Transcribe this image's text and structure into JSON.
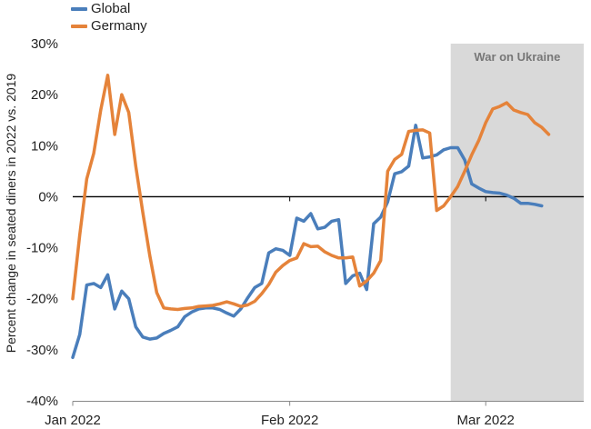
{
  "chart_data": {
    "type": "line",
    "ylabel": "Percent change in seated diners in 2022 vs. 2019",
    "ylim": [
      -40,
      30
    ],
    "yticks": [
      "30%",
      "20%",
      "10%",
      "0%",
      "-10%",
      "-20%",
      "-30%",
      "-40%"
    ],
    "ytick_values": [
      30,
      20,
      10,
      0,
      -10,
      -20,
      -30,
      -40
    ],
    "xlim": [
      "2022-01-01",
      "2022-03-15"
    ],
    "xticks": [
      {
        "date": "2022-01-01",
        "label": "Jan 2022"
      },
      {
        "date": "2022-02-01",
        "label": "Feb 2022"
      },
      {
        "date": "2022-03-01",
        "label": "Mar 2022"
      }
    ],
    "shaded_region": {
      "start": "2022-02-24",
      "end": "2022-03-15",
      "label": "War on Ukraine",
      "color": "#d9d9d9"
    },
    "zero_line": true,
    "grid": false,
    "legend_position": "top-left",
    "series": [
      {
        "name": "Global",
        "color": "#4a7ebb",
        "points": [
          [
            "2022-01-01",
            -31.5
          ],
          [
            "2022-01-02",
            -27.0
          ],
          [
            "2022-01-03",
            -17.3
          ],
          [
            "2022-01-04",
            -17.0
          ],
          [
            "2022-01-05",
            -17.8
          ],
          [
            "2022-01-06",
            -15.3
          ],
          [
            "2022-01-07",
            -22.0
          ],
          [
            "2022-01-08",
            -18.5
          ],
          [
            "2022-01-09",
            -20.0
          ],
          [
            "2022-01-10",
            -25.5
          ],
          [
            "2022-01-11",
            -27.5
          ],
          [
            "2022-01-12",
            -27.9
          ],
          [
            "2022-01-13",
            -27.7
          ],
          [
            "2022-01-14",
            -26.8
          ],
          [
            "2022-01-15",
            -26.2
          ],
          [
            "2022-01-16",
            -25.5
          ],
          [
            "2022-01-17",
            -23.5
          ],
          [
            "2022-01-18",
            -22.6
          ],
          [
            "2022-01-19",
            -22.0
          ],
          [
            "2022-01-20",
            -21.8
          ],
          [
            "2022-01-21",
            -21.8
          ],
          [
            "2022-01-22",
            -22.1
          ],
          [
            "2022-01-23",
            -22.8
          ],
          [
            "2022-01-24",
            -23.4
          ],
          [
            "2022-01-25",
            -22.0
          ],
          [
            "2022-01-26",
            -19.8
          ],
          [
            "2022-01-27",
            -17.8
          ],
          [
            "2022-01-28",
            -17.0
          ],
          [
            "2022-01-29",
            -11.0
          ],
          [
            "2022-01-30",
            -10.2
          ],
          [
            "2022-01-31",
            -10.5
          ],
          [
            "2022-02-01",
            -11.5
          ],
          [
            "2022-02-02",
            -4.2
          ],
          [
            "2022-02-03",
            -4.8
          ],
          [
            "2022-02-04",
            -3.3
          ],
          [
            "2022-02-05",
            -6.3
          ],
          [
            "2022-02-06",
            -6.0
          ],
          [
            "2022-02-07",
            -4.8
          ],
          [
            "2022-02-08",
            -4.5
          ],
          [
            "2022-02-09",
            -17.0
          ],
          [
            "2022-02-10",
            -15.5
          ],
          [
            "2022-02-11",
            -15.0
          ],
          [
            "2022-02-12",
            -18.2
          ],
          [
            "2022-02-13",
            -5.3
          ],
          [
            "2022-02-14",
            -4.0
          ],
          [
            "2022-02-15",
            -1.0
          ],
          [
            "2022-02-16",
            4.5
          ],
          [
            "2022-02-17",
            4.9
          ],
          [
            "2022-02-18",
            6.0
          ],
          [
            "2022-02-19",
            14.0
          ],
          [
            "2022-02-20",
            7.6
          ],
          [
            "2022-02-21",
            7.8
          ],
          [
            "2022-02-22",
            8.2
          ],
          [
            "2022-02-23",
            9.2
          ],
          [
            "2022-02-24",
            9.6
          ],
          [
            "2022-02-25",
            9.6
          ],
          [
            "2022-02-26",
            7.2
          ],
          [
            "2022-02-27",
            2.5
          ],
          [
            "2022-02-28",
            1.7
          ],
          [
            "2022-03-01",
            1.0
          ],
          [
            "2022-03-02",
            0.8
          ],
          [
            "2022-03-03",
            0.7
          ],
          [
            "2022-03-04",
            0.3
          ],
          [
            "2022-03-05",
            -0.3
          ],
          [
            "2022-03-06",
            -1.3
          ],
          [
            "2022-03-07",
            -1.3
          ],
          [
            "2022-03-08",
            -1.5
          ],
          [
            "2022-03-09",
            -1.8
          ]
        ]
      },
      {
        "name": "Germany",
        "color": "#e5833a",
        "points": [
          [
            "2022-01-01",
            -20.0
          ],
          [
            "2022-01-02",
            -7.5
          ],
          [
            "2022-01-03",
            3.5
          ],
          [
            "2022-01-04",
            8.5
          ],
          [
            "2022-01-05",
            17.0
          ],
          [
            "2022-01-06",
            23.8
          ],
          [
            "2022-01-07",
            12.2
          ],
          [
            "2022-01-08",
            20.0
          ],
          [
            "2022-01-09",
            16.5
          ],
          [
            "2022-01-10",
            6.0
          ],
          [
            "2022-01-11",
            -3.0
          ],
          [
            "2022-01-12",
            -11.5
          ],
          [
            "2022-01-13",
            -18.8
          ],
          [
            "2022-01-14",
            -21.8
          ],
          [
            "2022-01-15",
            -22.0
          ],
          [
            "2022-01-16",
            -22.1
          ],
          [
            "2022-01-17",
            -21.9
          ],
          [
            "2022-01-18",
            -21.8
          ],
          [
            "2022-01-19",
            -21.5
          ],
          [
            "2022-01-20",
            -21.4
          ],
          [
            "2022-01-21",
            -21.3
          ],
          [
            "2022-01-22",
            -21.0
          ],
          [
            "2022-01-23",
            -20.6
          ],
          [
            "2022-01-24",
            -21.0
          ],
          [
            "2022-01-25",
            -21.5
          ],
          [
            "2022-01-26",
            -21.2
          ],
          [
            "2022-01-27",
            -20.5
          ],
          [
            "2022-01-28",
            -19.0
          ],
          [
            "2022-01-29",
            -17.2
          ],
          [
            "2022-01-30",
            -14.8
          ],
          [
            "2022-01-31",
            -13.5
          ],
          [
            "2022-02-01",
            -12.5
          ],
          [
            "2022-02-02",
            -12.0
          ],
          [
            "2022-02-03",
            -9.2
          ],
          [
            "2022-02-04",
            -9.8
          ],
          [
            "2022-02-05",
            -9.7
          ],
          [
            "2022-02-06",
            -10.8
          ],
          [
            "2022-02-07",
            -11.5
          ],
          [
            "2022-02-08",
            -12.0
          ],
          [
            "2022-02-09",
            -12.0
          ],
          [
            "2022-02-10",
            -11.8
          ],
          [
            "2022-02-11",
            -17.5
          ],
          [
            "2022-02-12",
            -16.5
          ],
          [
            "2022-02-13",
            -15.0
          ],
          [
            "2022-02-14",
            -12.5
          ],
          [
            "2022-02-15",
            5.0
          ],
          [
            "2022-02-16",
            7.3
          ],
          [
            "2022-02-17",
            8.3
          ],
          [
            "2022-02-18",
            12.8
          ],
          [
            "2022-02-19",
            13.0
          ],
          [
            "2022-02-20",
            13.1
          ],
          [
            "2022-02-21",
            12.5
          ],
          [
            "2022-02-22",
            -2.7
          ],
          [
            "2022-02-23",
            -1.8
          ],
          [
            "2022-02-24",
            0.0
          ],
          [
            "2022-02-25",
            2.0
          ],
          [
            "2022-02-26",
            5.0
          ],
          [
            "2022-02-27",
            8.2
          ],
          [
            "2022-02-28",
            11.0
          ],
          [
            "2022-03-01",
            14.5
          ],
          [
            "2022-03-02",
            17.2
          ],
          [
            "2022-03-03",
            17.7
          ],
          [
            "2022-03-04",
            18.4
          ],
          [
            "2022-03-05",
            17.0
          ],
          [
            "2022-03-06",
            16.5
          ],
          [
            "2022-03-07",
            16.1
          ],
          [
            "2022-03-08",
            14.5
          ],
          [
            "2022-03-09",
            13.6
          ],
          [
            "2022-03-10",
            12.2
          ]
        ]
      }
    ]
  }
}
